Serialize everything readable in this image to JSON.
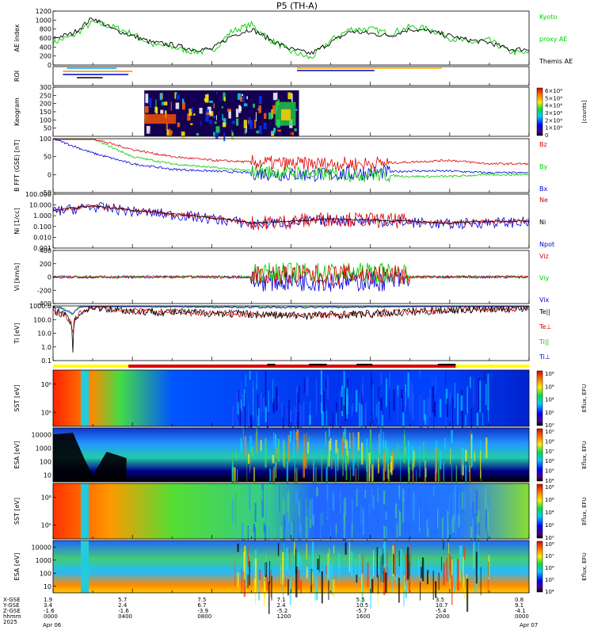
{
  "title": "P5 (TH-A)",
  "panels": [
    {
      "key": "ae",
      "ylabel": "AE index",
      "yticks": [
        "0",
        "200",
        "400",
        "600",
        "800",
        "1000",
        "1200"
      ],
      "ylim": [
        0,
        1200
      ],
      "legend": [
        {
          "label": "Kyoto",
          "color": "#00cc00"
        },
        {
          "label": "proxy AE",
          "color": "#00cc00"
        },
        {
          "label": "Themis AE",
          "color": "#000000"
        }
      ]
    },
    {
      "key": "roi",
      "ylabel": "ROI"
    },
    {
      "key": "keogram",
      "ylabel": "Keogram",
      "yticks": [
        "50",
        "100",
        "150",
        "200",
        "250",
        "300"
      ],
      "ylim": [
        0,
        300
      ],
      "colorbar": {
        "ticks": [
          "0",
          "1×10⁴",
          "2×10⁴",
          "3×10⁴",
          "4×10⁴",
          "5×10⁴",
          "6×10⁴"
        ],
        "label": "[counts]"
      }
    },
    {
      "key": "bfield",
      "ylabel": "B FFT (GSE) [nT]",
      "yticks": [
        "-50",
        "0",
        "50",
        "100"
      ],
      "ylim": [
        -50,
        100
      ],
      "legend": [
        {
          "label": "Bz",
          "color": "#dd0000"
        },
        {
          "label": "By",
          "color": "#00cc00"
        },
        {
          "label": "Bx",
          "color": "#0000dd"
        }
      ]
    },
    {
      "key": "density",
      "ylabel": "Ni [1/cc]",
      "yticks": [
        "0.001",
        "0.010",
        "0.100",
        "1.000",
        "10.000",
        "100.000"
      ],
      "ylim": [
        0.001,
        100
      ],
      "scale": "log",
      "legend": [
        {
          "label": "Ne",
          "color": "#dd0000"
        },
        {
          "label": "Ni",
          "color": "#000000"
        },
        {
          "label": "Npot",
          "color": "#0000dd"
        }
      ]
    },
    {
      "key": "velocity",
      "ylabel": "Vi [km/s]",
      "yticks": [
        "-400",
        "-200",
        "0",
        "200",
        "400"
      ],
      "ylim": [
        -400,
        400
      ],
      "legend": [
        {
          "label": "Viz",
          "color": "#dd0000"
        },
        {
          "label": "Viy",
          "color": "#00cc00"
        },
        {
          "label": "Vix",
          "color": "#0000dd"
        }
      ]
    },
    {
      "key": "temperature",
      "ylabel": "Ti [eV]",
      "yticks": [
        "0.1",
        "1.0",
        "10.0",
        "100.0",
        "1000.0"
      ],
      "ylim": [
        0.1,
        1000
      ],
      "scale": "log",
      "legend": [
        {
          "label": "Te||",
          "color": "#000000"
        },
        {
          "label": "Te⊥",
          "color": "#dd0000"
        },
        {
          "label": "Ti||",
          "color": "#00cc00"
        },
        {
          "label": "Ti⊥",
          "color": "#0000dd"
        }
      ]
    },
    {
      "key": "sst_e",
      "ylabel": "SST [eV]",
      "yticks": [
        "10⁵",
        "10⁶"
      ],
      "colorbar": {
        "ticks": [
          "10⁰",
          "10²",
          "10⁴",
          "10⁶",
          "10⁸"
        ],
        "label": "Eflux, EFU"
      }
    },
    {
      "key": "esa_e",
      "ylabel": "ESA [eV]",
      "yticks": [
        "10",
        "100",
        "1000",
        "10000"
      ],
      "colorbar": {
        "ticks": [
          "10⁴",
          "10⁵",
          "10⁶",
          "10⁷",
          "10⁸",
          "10⁹"
        ],
        "label": "Eflux, EFU"
      }
    },
    {
      "key": "sst_i",
      "ylabel": "SST [eV]",
      "yticks": [
        "10⁵",
        "10⁶"
      ],
      "colorbar": {
        "ticks": [
          "10⁰",
          "10²",
          "10⁴",
          "10⁶",
          "10⁸"
        ],
        "label": "Eflux, EFU"
      }
    },
    {
      "key": "esa_i",
      "ylabel": "ESA [eV]",
      "yticks": [
        "10",
        "100",
        "1000",
        "10000"
      ],
      "colorbar": {
        "ticks": [
          "10⁴",
          "10⁵",
          "10⁶",
          "10⁷",
          "10⁸"
        ],
        "label": "Eflux, EFU"
      }
    }
  ],
  "time_axis": {
    "row_labels": [
      "X-GSE",
      "Y-GSE",
      "Z-GSE",
      "hhmm",
      "2025"
    ],
    "columns": [
      {
        "x": "1.9",
        "y": "3.4",
        "z": "-1.6",
        "time": "0000",
        "date": "Apr 06"
      },
      {
        "x": "5.7",
        "y": "2.4",
        "z": "-1.6",
        "time": "0400",
        "date": ""
      },
      {
        "x": "7.5",
        "y": "6.7",
        "z": "-3.9",
        "time": "0800",
        "date": ""
      },
      {
        "x": "7.1",
        "y": "2.4",
        "z": "-5.2",
        "time": "1200",
        "date": ""
      },
      {
        "x": "5.5",
        "y": "10.5",
        "z": "-5.7",
        "time": "1600",
        "date": ""
      },
      {
        "x": "3.5",
        "y": "10.7",
        "z": "-5.4",
        "time": "2000",
        "date": ""
      },
      {
        "x": "0.8",
        "y": "9.1",
        "z": "-4.1",
        "time": "0000",
        "date": "Apr 07"
      }
    ]
  },
  "chart_data": {
    "type": "line",
    "title": "P5 (TH-A)",
    "x_range_hours": [
      0,
      24
    ],
    "series": [
      {
        "name": "Themis AE",
        "panel": "ae",
        "x_hours": [
          0,
          1,
          2,
          3,
          4,
          5,
          6,
          7,
          8,
          9,
          10,
          11,
          12,
          13,
          14,
          15,
          16,
          17,
          18,
          19,
          20,
          21,
          22,
          23,
          24
        ],
        "values": [
          600,
          700,
          1050,
          800,
          650,
          500,
          450,
          350,
          350,
          650,
          800,
          550,
          350,
          250,
          500,
          750,
          700,
          650,
          800,
          750,
          650,
          550,
          500,
          350,
          350
        ]
      },
      {
        "name": "Kyoto proxy AE",
        "panel": "ae",
        "x_hours": [
          0,
          1,
          2,
          3,
          4,
          5,
          6,
          7,
          8,
          9,
          10,
          11,
          12,
          13,
          14,
          15,
          16,
          17,
          18,
          19,
          20,
          21,
          22,
          23,
          24
        ],
        "values": [
          500,
          650,
          950,
          850,
          700,
          450,
          400,
          300,
          300,
          750,
          900,
          550,
          300,
          150,
          550,
          800,
          800,
          700,
          850,
          800,
          600,
          500,
          550,
          300,
          250
        ]
      },
      {
        "name": "Bz",
        "panel": "bfield",
        "x_hours": [
          0,
          2,
          4,
          6,
          8,
          10,
          12,
          14,
          16,
          18,
          20,
          22,
          24
        ],
        "values": [
          100,
          100,
          70,
          50,
          40,
          35,
          30,
          30,
          30,
          35,
          40,
          30,
          30
        ]
      },
      {
        "name": "By",
        "panel": "bfield",
        "x_hours": [
          0,
          2,
          4,
          6,
          8,
          10,
          12,
          14,
          16,
          18,
          20,
          22,
          24
        ],
        "values": [
          100,
          100,
          50,
          30,
          20,
          10,
          5,
          0,
          0,
          -5,
          -5,
          0,
          0
        ]
      },
      {
        "name": "Bx",
        "panel": "bfield",
        "x_hours": [
          0,
          2,
          4,
          6,
          8,
          10,
          12,
          14,
          16,
          18,
          20,
          22,
          24
        ],
        "values": [
          100,
          60,
          30,
          15,
          10,
          5,
          0,
          0,
          5,
          10,
          10,
          5,
          5
        ]
      },
      {
        "name": "Ni",
        "panel": "density",
        "x_hours": [
          0,
          1,
          2,
          4,
          6,
          8,
          10,
          12,
          14,
          16,
          18,
          20,
          22,
          24
        ],
        "values": [
          3,
          5,
          8,
          3,
          1.5,
          0.6,
          0.2,
          0.3,
          0.5,
          0.4,
          0.3,
          0.2,
          0.3,
          0.3
        ]
      }
    ],
    "ylabel": "AE index",
    "ylim": [
      0,
      1200
    ]
  }
}
